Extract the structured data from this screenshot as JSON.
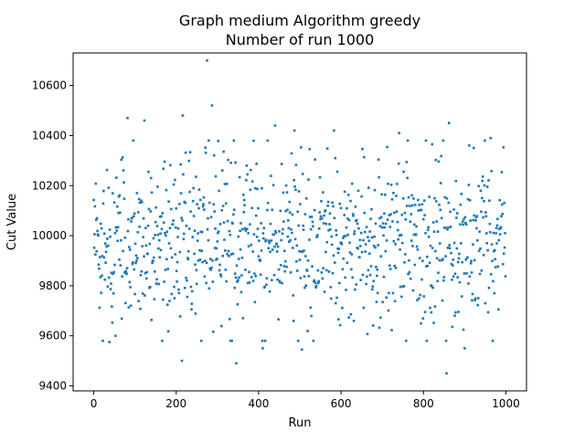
{
  "chart_data": {
    "type": "scatter",
    "title_line1": "Graph medium Algorithm greedy",
    "title_line2": "Number of run 1000",
    "xlabel": "Run",
    "ylabel": "Cut Value",
    "xlim": [
      -50,
      1050
    ],
    "ylim": [
      9380,
      10730
    ],
    "xticks": [
      0,
      200,
      400,
      600,
      800,
      1000
    ],
    "yticks": [
      9400,
      9600,
      9800,
      10000,
      10200,
      10400,
      10600
    ],
    "grid": false,
    "legend": "none",
    "marker_color": "#1f77b4",
    "n_points": 1000,
    "y_center": 9980,
    "y_spread": 170,
    "highlighted_points": [
      {
        "x": 275,
        "y": 10700
      },
      {
        "x": 287,
        "y": 10520
      },
      {
        "x": 82,
        "y": 10470
      },
      {
        "x": 123,
        "y": 10460
      },
      {
        "x": 216,
        "y": 10480
      },
      {
        "x": 440,
        "y": 10440
      },
      {
        "x": 862,
        "y": 10450
      },
      {
        "x": 487,
        "y": 10420
      },
      {
        "x": 583,
        "y": 10420
      },
      {
        "x": 741,
        "y": 10410
      },
      {
        "x": 963,
        "y": 10390
      },
      {
        "x": 346,
        "y": 9490
      },
      {
        "x": 214,
        "y": 9500
      },
      {
        "x": 856,
        "y": 9450
      },
      {
        "x": 410,
        "y": 9550
      },
      {
        "x": 505,
        "y": 9545
      },
      {
        "x": 900,
        "y": 9550
      },
      {
        "x": 38,
        "y": 9575
      },
      {
        "x": 53,
        "y": 9600
      }
    ]
  }
}
